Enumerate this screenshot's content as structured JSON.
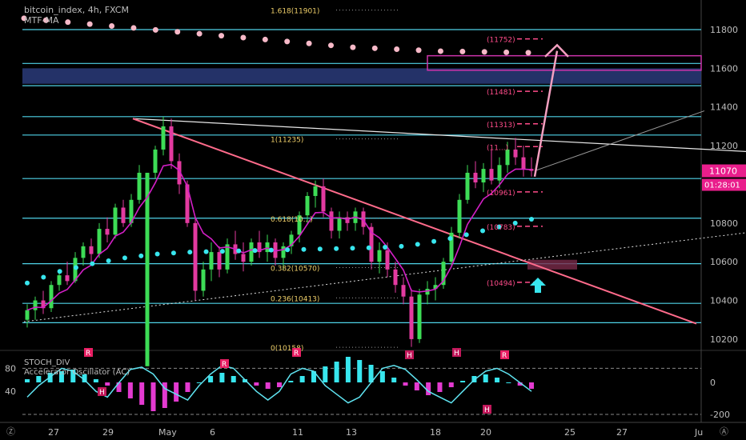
{
  "chart_data": {
    "type": "candlestick",
    "legend": {
      "symbol": "bitcoin_index, 4h, FXCM",
      "ma_label": "MTF-MA",
      "osc1": "STOCH_DIV",
      "osc2": "Accelerator Oscillator (AC)"
    },
    "main_price_axis": {
      "ticks": [
        "11800",
        "11600",
        "11400",
        "11200",
        "10800",
        "10600",
        "10400",
        "10200"
      ],
      "range": [
        10150,
        11920
      ]
    },
    "osc_axis": {
      "left_ticks": [
        "80",
        "40"
      ],
      "right_ticks": [
        "0",
        "-200"
      ]
    },
    "x_ticks": [
      "27",
      "29",
      "May",
      "6",
      "11",
      "13",
      "18",
      "20",
      "25",
      "27",
      "Ju"
    ],
    "current_price": "11070",
    "countdown": "01:28:01",
    "fib_labels": [
      {
        "text": "1.618(11901)",
        "price": 11901
      },
      {
        "text": "1(11235)",
        "price": 11235
      },
      {
        "text": "0.618(10...)",
        "price": 10825
      },
      {
        "text": "0.382(10570)",
        "price": 10570
      },
      {
        "text": "0.236(10413)",
        "price": 10413
      },
      {
        "text": "0(10158)",
        "price": 10158
      }
    ],
    "target_labels": [
      {
        "text": "(11752)",
        "price": 11752
      },
      {
        "text": "(11481)",
        "price": 11481
      },
      {
        "text": "(11313)",
        "price": 11313
      },
      {
        "text": "(11...)",
        "price": 11195
      },
      {
        "text": "(10961)",
        "price": 10961
      },
      {
        "text": "(10783)",
        "price": 10783
      },
      {
        "text": "(10494)",
        "price": 10494
      }
    ],
    "horizontal_levels": [
      11800,
      11625,
      11510,
      11350,
      11255,
      11030,
      10825,
      10590,
      10385,
      10285
    ],
    "divergence_marks": [
      "R",
      "H",
      "R",
      "R",
      "H",
      "H",
      "R",
      "H"
    ],
    "candles_ohlc": [
      [
        10300,
        10380,
        10260,
        10350
      ],
      [
        10350,
        10420,
        10300,
        10400
      ],
      [
        10400,
        10450,
        10330,
        10360
      ],
      [
        10360,
        10500,
        10340,
        10480
      ],
      [
        10480,
        10560,
        10450,
        10530
      ],
      [
        10530,
        10600,
        10480,
        10500
      ],
      [
        10500,
        10650,
        10490,
        10620
      ],
      [
        10620,
        10700,
        10580,
        10680
      ],
      [
        10680,
        10720,
        10600,
        10640
      ],
      [
        10640,
        10800,
        10620,
        10770
      ],
      [
        10770,
        10830,
        10700,
        10740
      ],
      [
        10740,
        10900,
        10720,
        10880
      ],
      [
        10880,
        10920,
        10780,
        10800
      ],
      [
        10800,
        10950,
        10780,
        10920
      ],
      [
        10920,
        11100,
        10900,
        11060
      ],
      [
        10060,
        11060,
        10060,
        11060
      ],
      [
        11060,
        11200,
        11030,
        11180
      ],
      [
        11180,
        11350,
        11150,
        11300
      ],
      [
        11300,
        11340,
        11080,
        11120
      ],
      [
        11120,
        11160,
        10950,
        11000
      ],
      [
        11000,
        11020,
        10780,
        10800
      ],
      [
        10800,
        10830,
        10400,
        10450
      ],
      [
        10450,
        10600,
        10420,
        10560
      ],
      [
        10560,
        10700,
        10500,
        10650
      ],
      [
        10650,
        10680,
        10520,
        10560
      ],
      [
        10560,
        10720,
        10540,
        10690
      ],
      [
        10690,
        10760,
        10610,
        10640
      ],
      [
        10640,
        10700,
        10550,
        10600
      ],
      [
        10600,
        10720,
        10580,
        10700
      ],
      [
        10700,
        10760,
        10620,
        10650
      ],
      [
        10650,
        10740,
        10600,
        10700
      ],
      [
        10700,
        10720,
        10580,
        10620
      ],
      [
        10620,
        10700,
        10560,
        10680
      ],
      [
        10680,
        10760,
        10640,
        10740
      ],
      [
        10740,
        10860,
        10700,
        10840
      ],
      [
        10840,
        10960,
        10800,
        10940
      ],
      [
        10940,
        11020,
        10880,
        10990
      ],
      [
        10990,
        11030,
        10830,
        10860
      ],
      [
        10860,
        10880,
        10720,
        10760
      ],
      [
        10760,
        10860,
        10720,
        10830
      ],
      [
        10830,
        10860,
        10760,
        10800
      ],
      [
        10800,
        10880,
        10760,
        10860
      ],
      [
        10860,
        10880,
        10740,
        10780
      ],
      [
        10780,
        10800,
        10560,
        10600
      ],
      [
        10600,
        10700,
        10540,
        10660
      ],
      [
        10660,
        10700,
        10520,
        10560
      ],
      [
        10560,
        10600,
        10440,
        10480
      ],
      [
        10480,
        10520,
        10380,
        10420
      ],
      [
        10420,
        10460,
        10160,
        10200
      ],
      [
        10200,
        10460,
        10180,
        10430
      ],
      [
        10430,
        10500,
        10380,
        10460
      ],
      [
        10460,
        10520,
        10400,
        10480
      ],
      [
        10480,
        10620,
        10460,
        10600
      ],
      [
        10600,
        10780,
        10580,
        10750
      ],
      [
        10750,
        10950,
        10720,
        10920
      ],
      [
        10920,
        11100,
        10900,
        11060
      ],
      [
        11060,
        11120,
        10980,
        11010
      ],
      [
        11010,
        11110,
        10960,
        11080
      ],
      [
        11080,
        11180,
        11000,
        11020
      ],
      [
        11020,
        11140,
        10980,
        11100
      ],
      [
        11100,
        11220,
        11060,
        11180
      ],
      [
        11180,
        11240,
        11100,
        11140
      ],
      [
        11140,
        11200,
        11040,
        11080
      ],
      [
        11080,
        11140,
        11040,
        11070
      ]
    ],
    "ma_dotted": [
      10490,
      10520,
      10550,
      10570,
      10590,
      10605,
      10620,
      10630,
      10640,
      10645,
      10650,
      10652,
      10654,
      10656,
      10658,
      10660,
      10662,
      10664,
      10666,
      10668,
      10670,
      10672,
      10675,
      10680,
      10690,
      10705,
      10720,
      10740,
      10760,
      10780,
      10800,
      10820
    ],
    "ma_top": [
      11900,
      11890,
      11880,
      11870,
      11860,
      11850,
      11840,
      11830,
      11820,
      11810,
      11800,
      11790,
      11780,
      11770,
      11760,
      11750,
      11745,
      11740,
      11735,
      11730,
      11728,
      11726,
      11724,
      11722
    ],
    "stoch": [
      30,
      50,
      65,
      80,
      75,
      60,
      40,
      30,
      55,
      78,
      82,
      70,
      45,
      35,
      25,
      50,
      70,
      85,
      80,
      60,
      40,
      25,
      40,
      70,
      80,
      75,
      50,
      35,
      20,
      30,
      55,
      80,
      85,
      78,
      60,
      40,
      30,
      20,
      40,
      60,
      75,
      80,
      70,
      55,
      40
    ],
    "ac": [
      20,
      40,
      60,
      70,
      80,
      50,
      20,
      -20,
      -60,
      -100,
      -140,
      -180,
      -160,
      -120,
      -60,
      0,
      40,
      60,
      40,
      20,
      -20,
      -40,
      -30,
      10,
      40,
      70,
      100,
      130,
      160,
      140,
      110,
      70,
      30,
      -20,
      -50,
      -80,
      -60,
      -30,
      10,
      40,
      50,
      30,
      0,
      -20,
      -40
    ]
  }
}
